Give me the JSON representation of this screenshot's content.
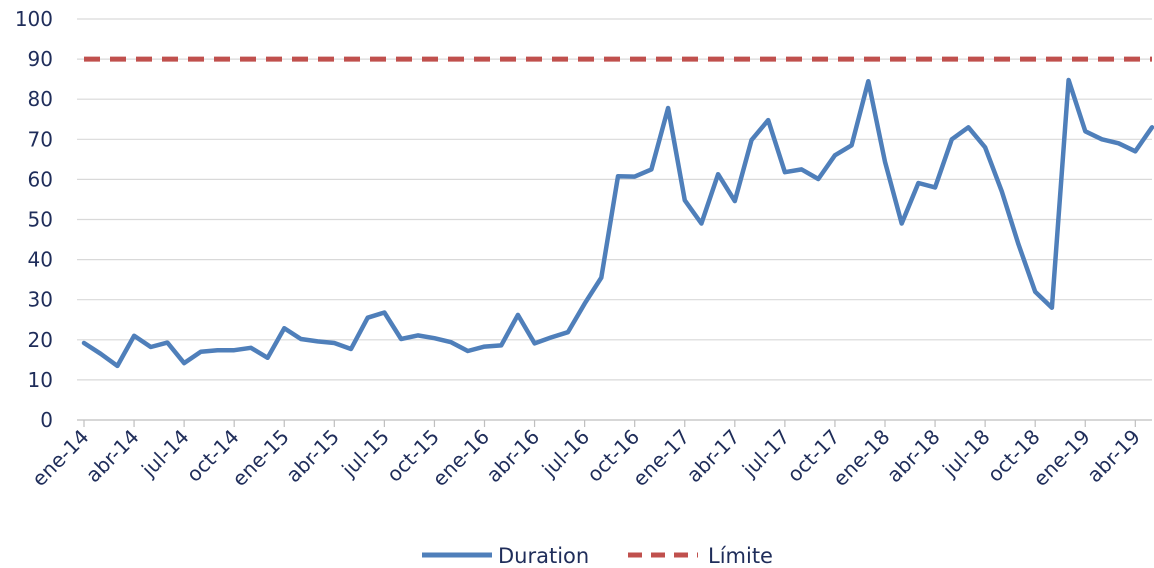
{
  "chart_data": {
    "type": "line",
    "xlabel": "",
    "ylabel": "",
    "ylim": [
      0,
      100
    ],
    "yticks": [
      0,
      10,
      20,
      30,
      40,
      50,
      60,
      70,
      80,
      90,
      100
    ],
    "grid": true,
    "legend_position": "bottom",
    "colors": {
      "Duration": "#4f7fba",
      "Límite": "#c0504d",
      "axis_text": "#1f2d5a",
      "grid": "#d9d9d9"
    },
    "x": [
      "ene-14",
      "feb-14",
      "mar-14",
      "abr-14",
      "may-14",
      "jun-14",
      "jul-14",
      "ago-14",
      "sep-14",
      "oct-14",
      "nov-14",
      "dic-14",
      "ene-15",
      "feb-15",
      "mar-15",
      "abr-15",
      "may-15",
      "jun-15",
      "jul-15",
      "ago-15",
      "sep-15",
      "oct-15",
      "nov-15",
      "dic-15",
      "ene-16",
      "feb-16",
      "mar-16",
      "abr-16",
      "may-16",
      "jun-16",
      "jul-16",
      "ago-16",
      "sep-16",
      "oct-16",
      "nov-16",
      "dic-16",
      "ene-17",
      "feb-17",
      "mar-17",
      "abr-17",
      "may-17",
      "jun-17",
      "jul-17",
      "ago-17",
      "sep-17",
      "oct-17",
      "nov-17",
      "dic-17",
      "ene-18",
      "feb-18",
      "mar-18",
      "abr-18",
      "may-18",
      "jun-18",
      "jul-18",
      "ago-18",
      "sep-18",
      "oct-18",
      "nov-18",
      "dic-18",
      "ene-19",
      "feb-19",
      "mar-19",
      "abr-19",
      "may-19"
    ],
    "x_tick_labels": [
      "ene-14",
      "abr-14",
      "jul-14",
      "oct-14",
      "ene-15",
      "abr-15",
      "jul-15",
      "oct-15",
      "ene-16",
      "abr-16",
      "jul-16",
      "oct-16",
      "ene-17",
      "abr-17",
      "jul-17",
      "oct-17",
      "ene-18",
      "abr-18",
      "jul-18",
      "oct-18",
      "ene-19",
      "abr-19"
    ],
    "series": [
      {
        "name": "Duration",
        "style": "solid",
        "values": [
          19.2,
          16.5,
          13.5,
          21,
          18.2,
          19.3,
          14.2,
          17,
          17.4,
          17.4,
          18,
          15.5,
          22.9,
          20.2,
          19.6,
          19.2,
          17.7,
          25.5,
          26.8,
          20.2,
          21.1,
          20.4,
          19.4,
          17.2,
          18.3,
          18.6,
          26.2,
          19.1,
          20.6,
          21.9,
          29,
          35.5,
          60.8,
          60.7,
          62.5,
          77.8,
          54.8,
          49,
          61.3,
          54.6,
          69.8,
          74.8,
          61.8,
          62.5,
          60.1,
          66,
          68.5,
          84.5,
          64.4,
          49,
          59.1,
          58,
          70,
          73,
          68,
          57,
          43.8,
          32,
          28,
          84.8,
          72,
          70,
          69,
          67,
          73
        ]
      },
      {
        "name": "Límite",
        "style": "dashed",
        "values": [
          90,
          90,
          90,
          90,
          90,
          90,
          90,
          90,
          90,
          90,
          90,
          90,
          90,
          90,
          90,
          90,
          90,
          90,
          90,
          90,
          90,
          90,
          90,
          90,
          90,
          90,
          90,
          90,
          90,
          90,
          90,
          90,
          90,
          90,
          90,
          90,
          90,
          90,
          90,
          90,
          90,
          90,
          90,
          90,
          90,
          90,
          90,
          90,
          90,
          90,
          90,
          90,
          90,
          90,
          90,
          90,
          90,
          90,
          90,
          90,
          90,
          90,
          90,
          90,
          90
        ]
      }
    ]
  }
}
